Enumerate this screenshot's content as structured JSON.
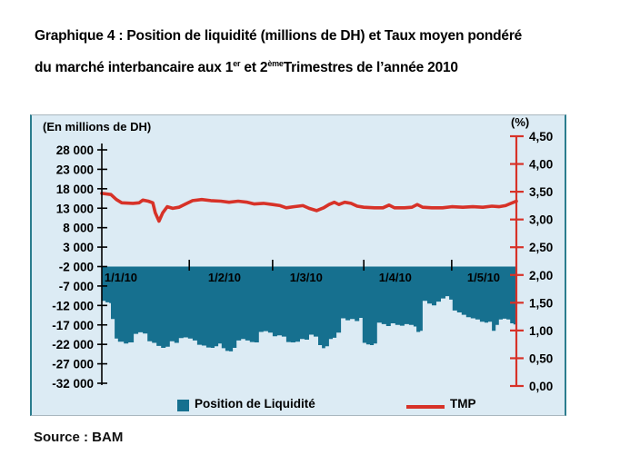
{
  "title": {
    "line1": "Graphique 4 : Position de liquidité (millions de DH) et Taux moyen pondéré",
    "line2_prefix": "du marché interbancaire aux 1",
    "line2_sup1": "er",
    "line2_mid": " et 2",
    "line2_sup2": "ème",
    "line2_suffix": "Trimestres de l’année 2010"
  },
  "source": "Source : BAM",
  "legend": {
    "liquidity": "Position de Liquidité",
    "tmp": "TMP"
  },
  "colors": {
    "bar": "#16708f",
    "line": "#d73228",
    "panel_bg": "#dcebf4",
    "left_axis": "#000000",
    "right_axis": "#d73228"
  },
  "chart_data": {
    "type": "combo",
    "title": "Position de liquidité (millions de DH) et TMP, T1-T2 2010",
    "left_axis": {
      "label": "(En millions de DH)",
      "ticks": [
        "28 000",
        "23 000",
        "18 000",
        "13 000",
        "8 000",
        "3 000",
        "-2 000",
        "-7 000",
        "-12 000",
        "-17 000",
        "-22 000",
        "-27 000",
        "-32 000"
      ],
      "tick_values": [
        28000,
        23000,
        18000,
        13000,
        8000,
        3000,
        -2000,
        -7000,
        -12000,
        -17000,
        -22000,
        -27000,
        -32000
      ],
      "range": [
        -32000,
        28000
      ]
    },
    "right_axis": {
      "label": "(%)",
      "ticks": [
        "4,50",
        "4,00",
        "3,50",
        "3,00",
        "2,50",
        "2,00",
        "1,50",
        "1,00",
        "0,50",
        "0,00"
      ],
      "tick_values": [
        4.5,
        4.0,
        3.5,
        3.0,
        2.5,
        2.0,
        1.5,
        1.0,
        0.5,
        0.0
      ],
      "range": [
        0,
        4.5
      ]
    },
    "x_axis": {
      "categories": [
        "1/1/10",
        "1/2/10",
        "1/3/10",
        "1/4/10",
        "1/5/10"
      ],
      "label_pos": [
        0.046,
        0.296,
        0.493,
        0.708,
        0.921
      ],
      "month_tick_pos": [
        0.211,
        0.412,
        0.632,
        0.844
      ]
    },
    "series": [
      {
        "name": "Position de Liquidité",
        "type": "bar",
        "axis": "left",
        "baseline": -2000,
        "t": [
          0,
          0.009,
          0.018,
          0.022,
          0.031,
          0.039,
          0.053,
          0.064,
          0.077,
          0.088,
          0.099,
          0.11,
          0.121,
          0.132,
          0.143,
          0.154,
          0.164,
          0.175,
          0.186,
          0.197,
          0.208,
          0.219,
          0.23,
          0.241,
          0.252,
          0.263,
          0.272,
          0.281,
          0.289,
          0.298,
          0.307,
          0.316,
          0.325,
          0.336,
          0.346,
          0.357,
          0.368,
          0.379,
          0.39,
          0.401,
          0.412,
          0.423,
          0.434,
          0.445,
          0.456,
          0.467,
          0.478,
          0.489,
          0.5,
          0.511,
          0.522,
          0.531,
          0.539,
          0.548,
          0.557,
          0.566,
          0.577,
          0.588,
          0.599,
          0.61,
          0.621,
          0.629,
          0.638,
          0.647,
          0.656,
          0.664,
          0.675,
          0.686,
          0.697,
          0.708,
          0.719,
          0.73,
          0.741,
          0.752,
          0.759,
          0.768,
          0.774,
          0.785,
          0.796,
          0.807,
          0.818,
          0.829,
          0.838,
          0.846,
          0.857,
          0.868,
          0.879,
          0.89,
          0.901,
          0.912,
          0.923,
          0.932,
          0.941,
          0.95,
          0.958,
          0.967,
          0.976,
          0.985,
          0.993,
          1.0
        ],
        "v": [
          -10800,
          -11200,
          -11400,
          -15500,
          -20500,
          -21300,
          -21800,
          -21500,
          -19300,
          -18900,
          -19200,
          -21200,
          -21600,
          -22400,
          -22900,
          -22600,
          -21200,
          -21600,
          -20400,
          -20200,
          -20500,
          -21000,
          -22100,
          -22300,
          -22800,
          -22900,
          -22500,
          -21800,
          -23000,
          -23700,
          -23800,
          -22900,
          -21000,
          -20600,
          -21000,
          -21400,
          -21500,
          -18800,
          -18600,
          -19000,
          -19900,
          -19700,
          -20000,
          -21400,
          -21500,
          -21300,
          -20600,
          -20800,
          -19500,
          -20000,
          -22200,
          -23000,
          -22500,
          -20600,
          -20300,
          -19000,
          -15300,
          -15800,
          -15500,
          -16000,
          -15200,
          -21600,
          -22000,
          -22200,
          -21800,
          -16400,
          -16800,
          -17300,
          -16600,
          -17000,
          -17200,
          -16800,
          -17000,
          -17400,
          -18800,
          -18500,
          -10800,
          -11500,
          -12000,
          -11000,
          -10200,
          -9600,
          -10500,
          -13300,
          -13800,
          -14400,
          -15000,
          -15300,
          -15600,
          -16200,
          -16400,
          -16200,
          -18500,
          -17000,
          -15600,
          -15400,
          -15600,
          -16600,
          -16900,
          -16800
        ]
      },
      {
        "name": "TMP",
        "type": "line",
        "axis": "right",
        "t": [
          0,
          0.022,
          0.035,
          0.048,
          0.075,
          0.09,
          0.099,
          0.112,
          0.123,
          0.129,
          0.138,
          0.147,
          0.158,
          0.171,
          0.186,
          0.202,
          0.219,
          0.241,
          0.263,
          0.287,
          0.307,
          0.329,
          0.351,
          0.368,
          0.39,
          0.412,
          0.43,
          0.445,
          0.463,
          0.485,
          0.5,
          0.518,
          0.535,
          0.548,
          0.561,
          0.572,
          0.586,
          0.601,
          0.616,
          0.632,
          0.658,
          0.678,
          0.693,
          0.706,
          0.73,
          0.748,
          0.761,
          0.774,
          0.796,
          0.822,
          0.844,
          0.871,
          0.895,
          0.919,
          0.941,
          0.958,
          0.974,
          0.987,
          1.0
        ],
        "v": [
          3.47,
          3.45,
          3.36,
          3.3,
          3.29,
          3.3,
          3.35,
          3.33,
          3.3,
          3.12,
          2.97,
          3.12,
          3.23,
          3.2,
          3.22,
          3.28,
          3.34,
          3.36,
          3.34,
          3.33,
          3.31,
          3.33,
          3.31,
          3.28,
          3.29,
          3.27,
          3.25,
          3.21,
          3.23,
          3.25,
          3.2,
          3.16,
          3.21,
          3.27,
          3.31,
          3.27,
          3.31,
          3.29,
          3.24,
          3.22,
          3.21,
          3.21,
          3.26,
          3.21,
          3.21,
          3.22,
          3.27,
          3.22,
          3.21,
          3.21,
          3.23,
          3.22,
          3.23,
          3.22,
          3.24,
          3.23,
          3.25,
          3.29,
          3.33
        ]
      }
    ]
  }
}
